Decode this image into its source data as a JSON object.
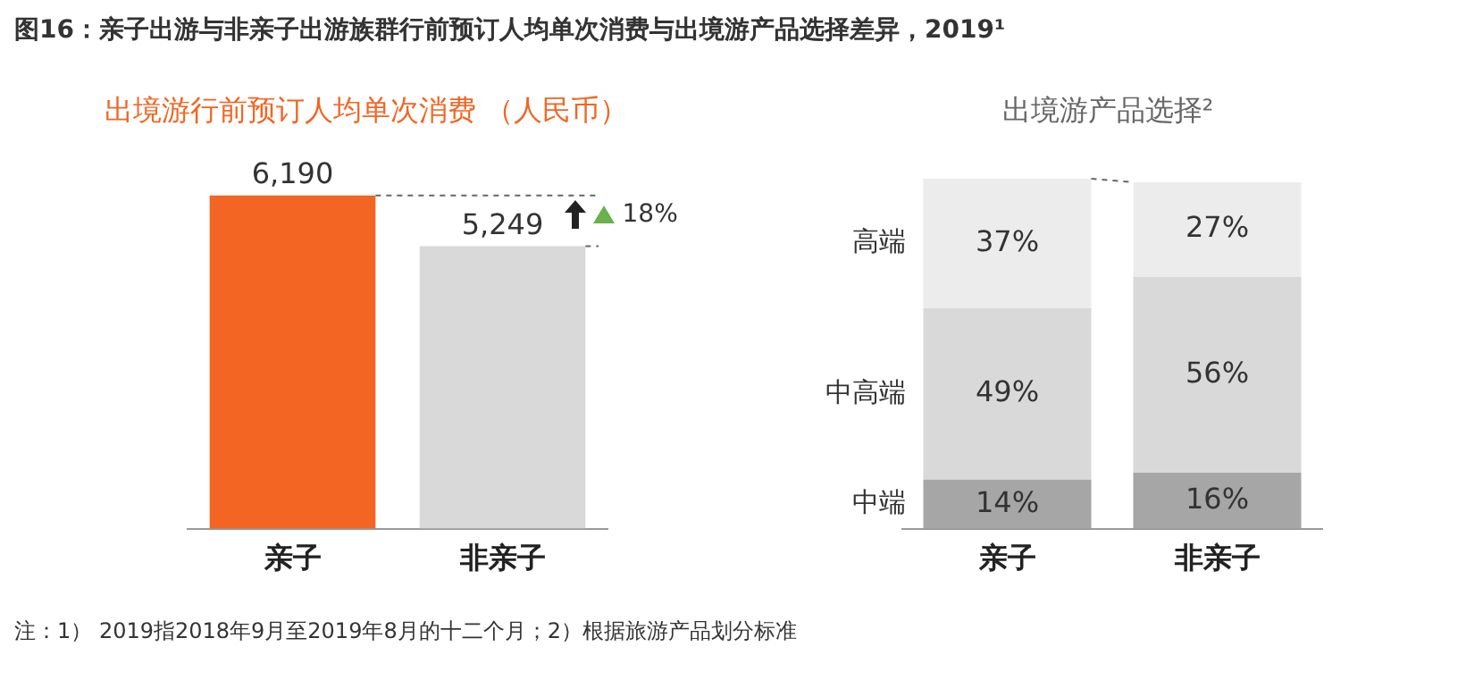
{
  "chart_data": [
    {
      "type": "bar",
      "title": "图16：亲子出游与非亲子出游族群行前预订人均单次消费与出境游产品选择差异，2019¹",
      "subtitle": "出境游行前预订人均单次消费 （人民币）",
      "categories": [
        "亲子",
        "非亲子"
      ],
      "values": [
        6190,
        5249
      ],
      "colors": [
        "#f26522",
        "#d9d9d9"
      ],
      "value_labels": [
        "6,190",
        "5,249"
      ],
      "tick_labels": "x",
      "grid": false,
      "legend": false,
      "annotations": [
        "18%",
        "注：1） 2019指2018年9月至2019年8月的十二个月；2）根据旅游产品划分标准"
      ]
    },
    {
      "type": "bar",
      "title": "出境游产品选择²",
      "categories": [
        "亲子",
        "非亲子"
      ],
      "stacked": true,
      "ylim": [
        0,
        100
      ],
      "tick_labels": "x",
      "grid": false,
      "legend": false,
      "series": [
        {
          "name": "中端",
          "color": "#a6a6a6",
          "values": [
            14,
            16
          ],
          "value_labels": [
            "14%",
            "16%"
          ]
        },
        {
          "name": "中高端",
          "color": "#d9d9d9",
          "values": [
            49,
            56
          ],
          "value_labels": [
            "49%",
            "56%"
          ]
        },
        {
          "name": "高端",
          "color": "#ececec",
          "values": [
            37,
            27
          ],
          "value_labels": [
            "37%",
            "27%"
          ]
        }
      ]
    }
  ]
}
